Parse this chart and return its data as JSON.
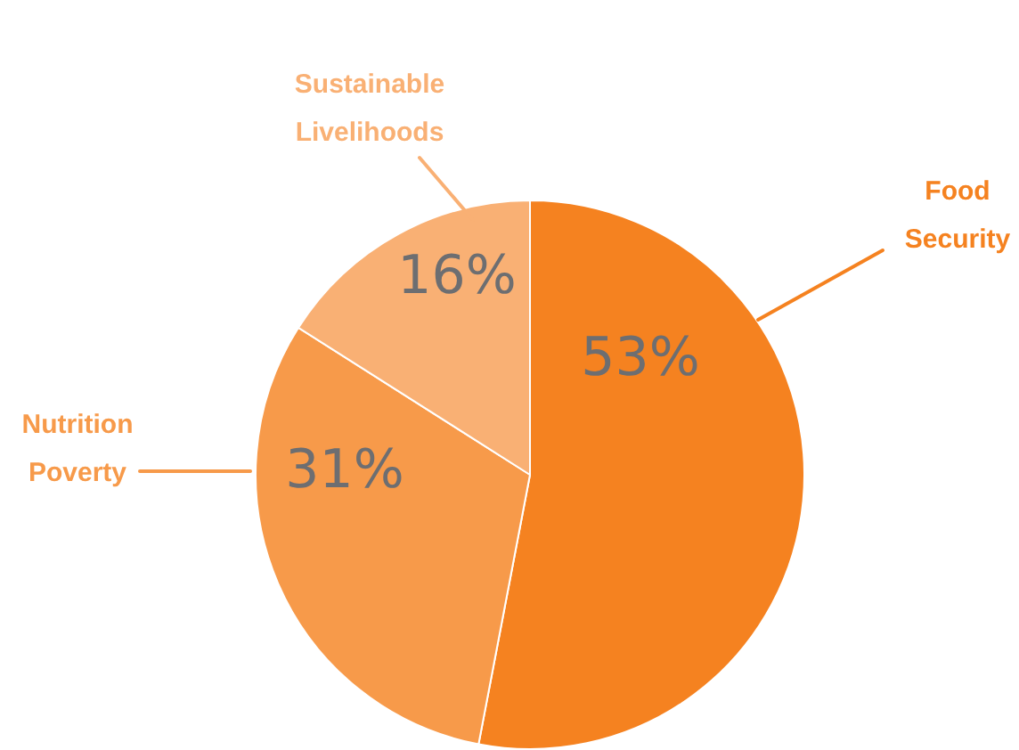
{
  "chart_data": {
    "type": "pie",
    "categories": [
      "Food Security",
      "Nutrition Poverty",
      "Sustainable Livelihoods"
    ],
    "values": [
      53,
      31,
      16
    ],
    "colors": [
      "#f58220",
      "#f79a4a",
      "#f9b074"
    ],
    "value_labels": [
      "53%",
      "31%",
      "16%"
    ]
  }
}
